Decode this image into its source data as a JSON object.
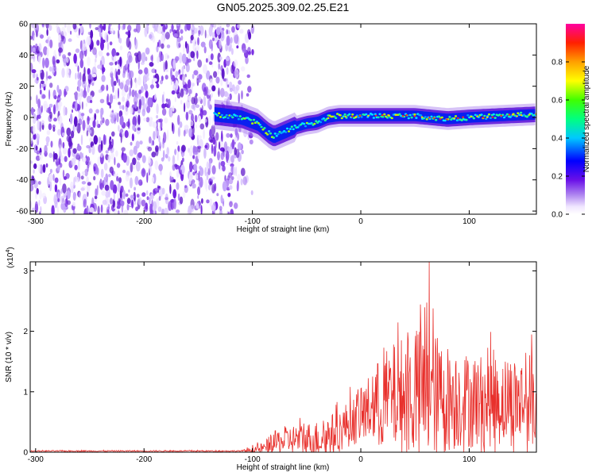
{
  "title": "GN05.2025.309.02.25.E21",
  "chart_data": [
    {
      "type": "heatmap",
      "title": "GN05.2025.309.02.25.E21",
      "xlabel": "Height of straight line (km)",
      "ylabel": "Frequency (Hz)",
      "xlim": [
        -305,
        162
      ],
      "ylim": [
        -62,
        60
      ],
      "xticks": [
        -300,
        -200,
        -100,
        0,
        100
      ],
      "yticks": [
        -60,
        -40,
        -20,
        0,
        20,
        40,
        60
      ],
      "noise_region_x": [
        -305,
        -107
      ],
      "signal_start_x": -135,
      "signal_center": {
        "x": [
          -135,
          -110,
          -95,
          -85,
          -80,
          -70,
          -60,
          -50,
          -40,
          -30,
          -20,
          -10,
          0,
          20,
          50,
          80,
          100,
          130,
          162
        ],
        "freq": [
          2,
          0,
          -4,
          -10,
          -12,
          -9,
          -6,
          -4,
          -3,
          0,
          1,
          1,
          1,
          1,
          1,
          -1,
          0,
          1,
          2
        ]
      },
      "colorbar": {
        "label": "Normalized spectral amplitude",
        "range": [
          0.0,
          1.0
        ],
        "ticks": [
          "0.0",
          "0.2",
          "0.4",
          "0.6",
          "0.8"
        ]
      }
    },
    {
      "type": "line",
      "xlabel": "Height of straight line (km)",
      "ylabel": "SNR (10 * v/v)",
      "scale_note": "(x10",
      "scale_exp": "4",
      "xlim": [
        -305,
        162
      ],
      "ylim": [
        0,
        3.15
      ],
      "xticks": [
        -300,
        -200,
        -100,
        0,
        100
      ],
      "yticks": [
        0,
        1,
        2,
        3
      ],
      "series": [
        {
          "name": "SNR",
          "color": "#e8302c",
          "envelope": {
            "x": [
              -305,
              -110,
              -90,
              -80,
              -60,
              -40,
              -20,
              -10,
              0,
              10,
              20,
              30,
              40,
              50,
              60,
              70,
              80,
              100,
              130,
              162
            ],
            "mean": [
              0.02,
              0.02,
              0.06,
              0.15,
              0.22,
              0.22,
              0.35,
              0.5,
              0.6,
              0.75,
              0.85,
              0.9,
              0.95,
              0.95,
              1.0,
              0.95,
              0.9,
              0.85,
              0.85,
              0.85
            ],
            "amplitude": [
              0.01,
              0.01,
              0.1,
              0.2,
              0.25,
              0.3,
              0.35,
              0.4,
              0.45,
              0.6,
              0.8,
              0.9,
              1.0,
              1.0,
              1.2,
              1.0,
              0.9,
              0.8,
              0.75,
              0.8
            ]
          },
          "peak": {
            "x": 63,
            "y": 3.15
          }
        }
      ]
    }
  ]
}
